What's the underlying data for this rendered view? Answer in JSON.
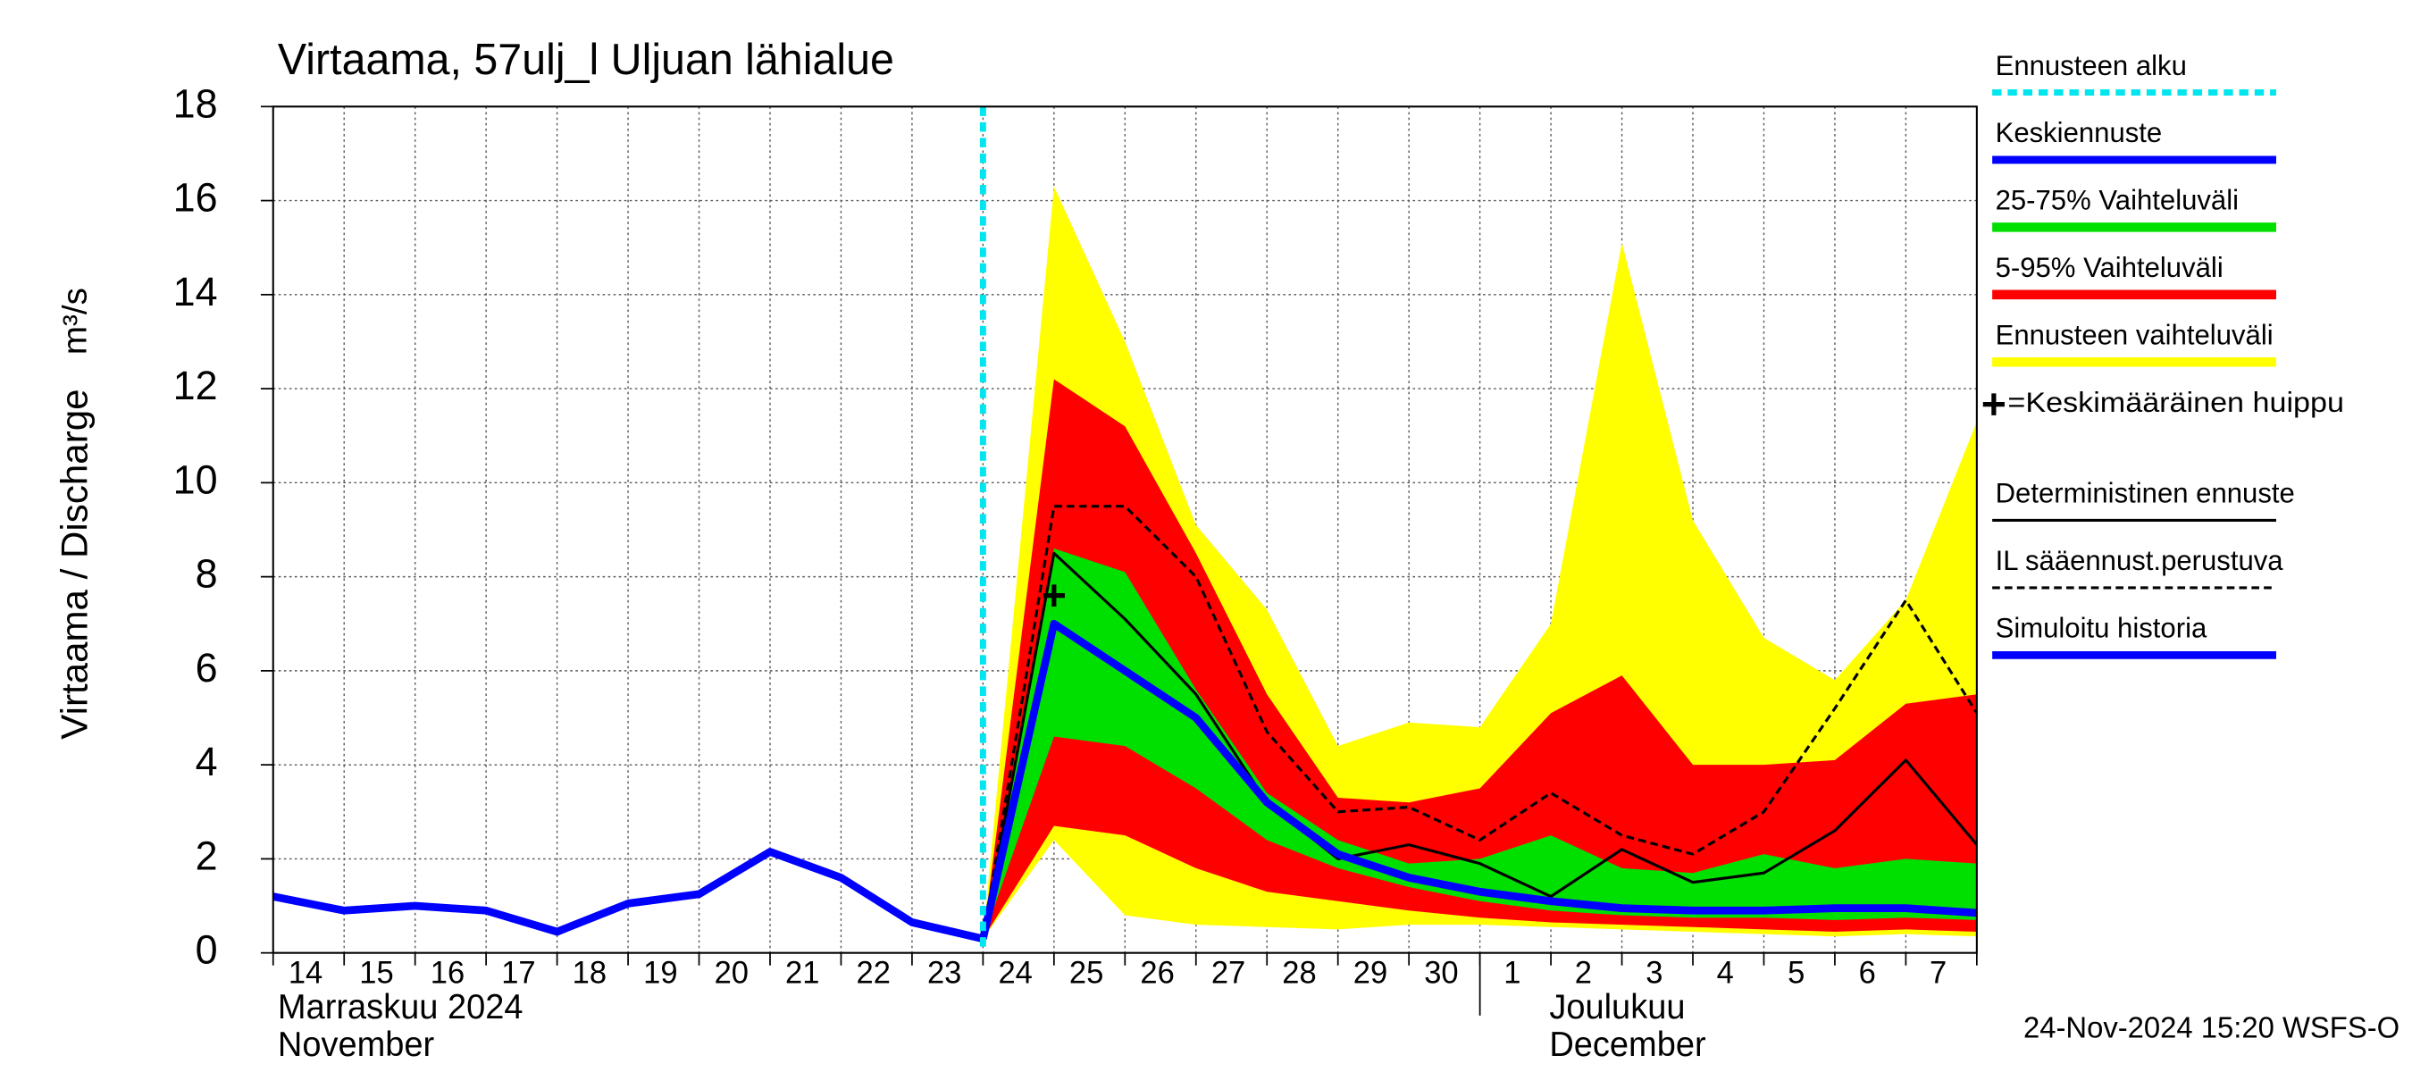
{
  "chart_data": {
    "type": "line",
    "title": "Virtaama, 57ulj_l Uljuan lähialue",
    "y_label": "Virtaama / Discharge",
    "y_unit": "m³/s",
    "categories": [
      "14",
      "15",
      "16",
      "17",
      "18",
      "19",
      "20",
      "21",
      "22",
      "23",
      "24",
      "25",
      "26",
      "27",
      "28",
      "29",
      "30",
      "1",
      "2",
      "3",
      "4",
      "5",
      "6",
      "7",
      null
    ],
    "month_labels": [
      {
        "index": 0,
        "lines": [
          "Marraskuu 2024",
          "November"
        ]
      },
      {
        "index": 17,
        "lines": [
          "Joulukuu",
          "December"
        ]
      }
    ],
    "ylim": [
      0,
      18
    ],
    "yticks": [
      0,
      2,
      4,
      6,
      8,
      10,
      12,
      14,
      16,
      18
    ],
    "grid": true,
    "forecast_start": {
      "name": "Ennusteen alku",
      "color": "#00e5ee",
      "x": 10
    },
    "peak": {
      "name": "=Keskimääräinen huippu",
      "color": "#000000",
      "x": 11,
      "y": 7.6
    },
    "series": [
      {
        "name": "Keskiennuste",
        "color": "#0000ff",
        "style": "thick",
        "values": [
          null,
          null,
          null,
          null,
          null,
          null,
          null,
          null,
          null,
          null,
          0.3,
          7.0,
          6.0,
          5.0,
          3.2,
          2.1,
          1.6,
          1.3,
          1.1,
          0.95,
          0.9,
          0.9,
          0.95,
          0.95,
          0.85
        ]
      },
      {
        "name": "25-75% Vaihteluväli",
        "color": "#00e000",
        "style": "band",
        "low": [
          null,
          null,
          null,
          null,
          null,
          null,
          null,
          null,
          null,
          null,
          0.3,
          4.6,
          4.4,
          3.5,
          2.4,
          1.8,
          1.4,
          1.1,
          0.9,
          0.8,
          0.75,
          0.75,
          0.7,
          0.75,
          0.7
        ],
        "high": [
          null,
          null,
          null,
          null,
          null,
          null,
          null,
          null,
          null,
          null,
          0.3,
          8.6,
          8.1,
          5.6,
          3.4,
          2.4,
          1.9,
          2.0,
          2.5,
          1.8,
          1.7,
          2.1,
          1.8,
          2.0,
          1.9
        ]
      },
      {
        "name": "5-95% Vaihteluväli",
        "color": "#ff0000",
        "style": "band",
        "low": [
          null,
          null,
          null,
          null,
          null,
          null,
          null,
          null,
          null,
          null,
          0.3,
          2.7,
          2.5,
          1.8,
          1.3,
          1.1,
          0.9,
          0.75,
          0.65,
          0.6,
          0.55,
          0.5,
          0.45,
          0.5,
          0.45
        ],
        "high": [
          null,
          null,
          null,
          null,
          null,
          null,
          null,
          null,
          null,
          null,
          0.3,
          12.2,
          11.2,
          8.5,
          5.5,
          3.3,
          3.2,
          3.5,
          5.1,
          5.9,
          4.0,
          4.0,
          4.1,
          5.3,
          5.5
        ]
      },
      {
        "name": "Ennusteen vaihteluväli",
        "color": "#ffff00",
        "style": "band",
        "low": [
          null,
          null,
          null,
          null,
          null,
          null,
          null,
          null,
          null,
          null,
          0.3,
          2.4,
          0.8,
          0.6,
          0.55,
          0.5,
          0.6,
          0.6,
          0.55,
          0.5,
          0.45,
          0.4,
          0.35,
          0.4,
          0.35
        ],
        "high": [
          null,
          null,
          null,
          null,
          null,
          null,
          null,
          null,
          null,
          null,
          0.3,
          16.3,
          13.0,
          9.1,
          7.3,
          4.4,
          4.9,
          4.8,
          7.0,
          15.1,
          9.2,
          6.7,
          5.8,
          7.5,
          11.3
        ]
      },
      {
        "name": "Deterministinen ennuste",
        "color": "#000000",
        "style": "thin",
        "values": [
          null,
          null,
          null,
          null,
          null,
          null,
          null,
          null,
          null,
          null,
          0.3,
          8.5,
          7.1,
          5.5,
          3.2,
          2.0,
          2.3,
          1.9,
          1.2,
          2.2,
          1.5,
          1.7,
          2.6,
          4.1,
          2.3
        ]
      },
      {
        "name": "IL sääennust.perustuva",
        "color": "#000000",
        "style": "dashed",
        "values": [
          null,
          null,
          null,
          null,
          null,
          null,
          null,
          null,
          null,
          null,
          0.3,
          9.5,
          9.5,
          8.0,
          4.7,
          3.0,
          3.1,
          2.4,
          3.4,
          2.5,
          2.1,
          3.0,
          5.2,
          7.5,
          5.1
        ]
      },
      {
        "name": "Simuloitu historia",
        "color": "#0000ff",
        "style": "thick",
        "values": [
          1.2,
          0.9,
          1.0,
          0.9,
          0.45,
          1.05,
          1.25,
          2.15,
          1.6,
          0.65,
          0.3,
          null,
          null,
          null,
          null,
          null,
          null,
          null,
          null,
          null,
          null,
          null,
          null,
          null,
          null
        ]
      }
    ],
    "timestamp": "24-Nov-2024 15:20 WSFS-O"
  }
}
